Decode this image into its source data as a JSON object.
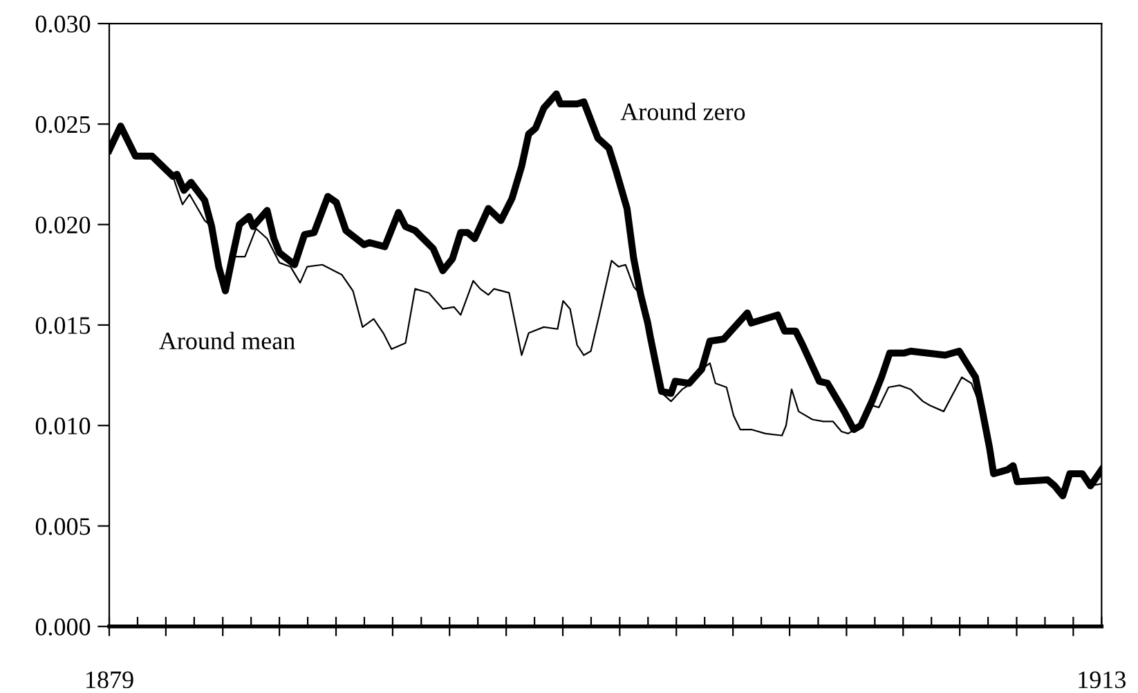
{
  "chart_data": {
    "type": "line",
    "xlim": [
      1879,
      1913
    ],
    "xticks": [
      {
        "value": 1879,
        "label": "1879"
      },
      {
        "value": 1879.97,
        "label": null
      },
      {
        "value": 1880.94,
        "label": null
      },
      {
        "value": 1881.91,
        "label": null
      },
      {
        "value": 1882.89,
        "label": null
      },
      {
        "value": 1883.86,
        "label": null
      },
      {
        "value": 1884.83,
        "label": null
      },
      {
        "value": 1885.8,
        "label": null
      },
      {
        "value": 1886.77,
        "label": null
      },
      {
        "value": 1887.74,
        "label": null
      },
      {
        "value": 1888.71,
        "label": null
      },
      {
        "value": 1889.69,
        "label": null
      },
      {
        "value": 1890.66,
        "label": null
      },
      {
        "value": 1891.63,
        "label": null
      },
      {
        "value": 1892.6,
        "label": null
      },
      {
        "value": 1893.57,
        "label": null
      },
      {
        "value": 1894.54,
        "label": null
      },
      {
        "value": 1895.51,
        "label": null
      },
      {
        "value": 1896.49,
        "label": null
      },
      {
        "value": 1897.46,
        "label": null
      },
      {
        "value": 1898.43,
        "label": null
      },
      {
        "value": 1899.4,
        "label": null
      },
      {
        "value": 1900.37,
        "label": null
      },
      {
        "value": 1901.34,
        "label": null
      },
      {
        "value": 1902.31,
        "label": null
      },
      {
        "value": 1903.29,
        "label": null
      },
      {
        "value": 1904.26,
        "label": null
      },
      {
        "value": 1905.23,
        "label": null
      },
      {
        "value": 1906.2,
        "label": null
      },
      {
        "value": 1907.17,
        "label": null
      },
      {
        "value": 1908.14,
        "label": null
      },
      {
        "value": 1909.11,
        "label": null
      },
      {
        "value": 1910.09,
        "label": null
      },
      {
        "value": 1911.06,
        "label": null
      },
      {
        "value": 1912.03,
        "label": null
      },
      {
        "value": 1913,
        "label": "1913"
      }
    ],
    "ylim": [
      0,
      0.03
    ],
    "yticks": [
      {
        "value": 0,
        "label": "0.000"
      },
      {
        "value": 0.005,
        "label": "0.005"
      },
      {
        "value": 0.01,
        "label": "0.010"
      },
      {
        "value": 0.015,
        "label": "0.015"
      },
      {
        "value": 0.02,
        "label": "0.020"
      },
      {
        "value": 0.025,
        "label": "0.025"
      },
      {
        "value": 0.03,
        "label": "0.030"
      }
    ],
    "grid": false,
    "legend": false,
    "marker": "none",
    "series": [
      {
        "name": "Around mean",
        "color": "#000000",
        "x": [
          1879.0,
          1879.39,
          1879.9,
          1880.47,
          1881.18,
          1881.51,
          1881.75,
          1882.27,
          1882.51,
          1882.75,
          1882.98,
          1883.22,
          1883.65,
          1884.03,
          1884.41,
          1884.83,
          1885.21,
          1885.54,
          1885.78,
          1886.3,
          1886.97,
          1887.35,
          1887.68,
          1888.06,
          1888.39,
          1888.67,
          1889.15,
          1889.48,
          1889.95,
          1890.43,
          1890.81,
          1891.04,
          1891.47,
          1891.71,
          1891.99,
          1892.18,
          1892.7,
          1893.13,
          1893.37,
          1893.89,
          1894.36,
          1894.55,
          1894.79,
          1895.03,
          1895.26,
          1895.5,
          1895.79,
          1896.21,
          1896.45,
          1896.69,
          1896.97,
          1897.21,
          1897.4,
          1897.87,
          1898.25,
          1898.63,
          1898.96,
          1899.3,
          1899.58,
          1899.77,
          1900.15,
          1900.39,
          1900.62,
          1901.0,
          1901.48,
          1902.05,
          1902.19,
          1902.38,
          1902.62,
          1903.09,
          1903.47,
          1903.8,
          1904.09,
          1904.32,
          1904.75,
          1905.13,
          1905.37,
          1905.7,
          1906.08,
          1906.46,
          1906.88,
          1907.12,
          1907.59,
          1908.21,
          1908.54,
          1908.92,
          1909.16,
          1909.3,
          1909.78,
          1909.97,
          1910.11,
          1911.15,
          1911.39,
          1911.67,
          1911.91,
          1912.34,
          1912.62,
          1913.0
        ],
        "values": [
          0.0237,
          0.0249,
          0.0234,
          0.0234,
          0.0224,
          0.021,
          0.0215,
          0.0202,
          0.0199,
          0.0179,
          0.0167,
          0.0184,
          0.0184,
          0.0198,
          0.0193,
          0.0181,
          0.0179,
          0.0171,
          0.0179,
          0.018,
          0.0175,
          0.0167,
          0.0149,
          0.0153,
          0.0146,
          0.0138,
          0.0141,
          0.0168,
          0.0166,
          0.0158,
          0.0159,
          0.0155,
          0.0172,
          0.0168,
          0.0165,
          0.0168,
          0.0166,
          0.0135,
          0.0146,
          0.0149,
          0.0148,
          0.0162,
          0.0158,
          0.014,
          0.0135,
          0.0137,
          0.0155,
          0.0182,
          0.0179,
          0.018,
          0.0169,
          0.0165,
          0.0155,
          0.0117,
          0.0112,
          0.0118,
          0.0121,
          0.0128,
          0.0131,
          0.0121,
          0.0119,
          0.0105,
          0.0098,
          0.0098,
          0.0096,
          0.0095,
          0.01,
          0.0118,
          0.0107,
          0.0103,
          0.0102,
          0.0102,
          0.0097,
          0.0096,
          0.01,
          0.011,
          0.0109,
          0.0119,
          0.012,
          0.0118,
          0.0112,
          0.011,
          0.0107,
          0.0124,
          0.0121,
          0.0107,
          0.0089,
          0.0076,
          0.0078,
          0.008,
          0.0072,
          0.0073,
          0.007,
          0.0065,
          0.0076,
          0.0076,
          0.007,
          0.0071
        ]
      },
      {
        "name": "Around zero",
        "color": "#000000",
        "x": [
          1879.0,
          1879.39,
          1879.9,
          1880.47,
          1881.18,
          1881.32,
          1881.56,
          1881.8,
          1882.27,
          1882.51,
          1882.75,
          1882.98,
          1883.22,
          1883.46,
          1883.79,
          1883.93,
          1884.41,
          1884.64,
          1884.83,
          1885.35,
          1885.69,
          1886.02,
          1886.49,
          1886.78,
          1887.11,
          1887.73,
          1887.92,
          1888.44,
          1888.91,
          1889.15,
          1889.48,
          1890.1,
          1890.43,
          1890.76,
          1891.04,
          1891.28,
          1891.52,
          1891.99,
          1892.42,
          1892.8,
          1893.13,
          1893.37,
          1893.61,
          1893.89,
          1894.32,
          1894.46,
          1895.03,
          1895.26,
          1895.74,
          1896.12,
          1896.36,
          1896.74,
          1896.97,
          1897.21,
          1897.45,
          1897.54,
          1897.92,
          1898.25,
          1898.39,
          1898.87,
          1899.3,
          1899.58,
          1900.05,
          1900.86,
          1901.0,
          1901.9,
          1902.14,
          1902.52,
          1902.76,
          1903.33,
          1903.61,
          1904.18,
          1904.51,
          1904.75,
          1905.13,
          1905.46,
          1905.74,
          1906.22,
          1906.46,
          1907.64,
          1908.12,
          1908.68,
          1908.92,
          1909.16,
          1909.3,
          1909.78,
          1909.97,
          1910.11,
          1911.15,
          1911.39,
          1911.67,
          1911.91,
          1912.34,
          1912.62,
          1913.0
        ],
        "values": [
          0.0237,
          0.0249,
          0.0234,
          0.0234,
          0.0224,
          0.0225,
          0.0217,
          0.0221,
          0.0212,
          0.0199,
          0.0179,
          0.0167,
          0.0184,
          0.02,
          0.0204,
          0.0199,
          0.0207,
          0.0193,
          0.0186,
          0.018,
          0.0195,
          0.0196,
          0.0214,
          0.0211,
          0.0197,
          0.019,
          0.0191,
          0.0189,
          0.0206,
          0.0199,
          0.0197,
          0.0188,
          0.0177,
          0.0183,
          0.0196,
          0.0196,
          0.0193,
          0.0208,
          0.0202,
          0.0213,
          0.0229,
          0.0245,
          0.0248,
          0.0258,
          0.0265,
          0.026,
          0.026,
          0.0261,
          0.0243,
          0.0238,
          0.0227,
          0.0208,
          0.0183,
          0.0165,
          0.0151,
          0.0144,
          0.0117,
          0.0116,
          0.0122,
          0.0121,
          0.0128,
          0.0142,
          0.0143,
          0.0156,
          0.0151,
          0.0155,
          0.0147,
          0.0147,
          0.014,
          0.0122,
          0.0121,
          0.0107,
          0.0098,
          0.01,
          0.0112,
          0.0124,
          0.0136,
          0.0136,
          0.0137,
          0.0135,
          0.0137,
          0.0124,
          0.0107,
          0.0089,
          0.0076,
          0.0078,
          0.008,
          0.0072,
          0.0073,
          0.007,
          0.0065,
          0.0076,
          0.0076,
          0.007,
          0.0078
        ]
      }
    ]
  }
}
